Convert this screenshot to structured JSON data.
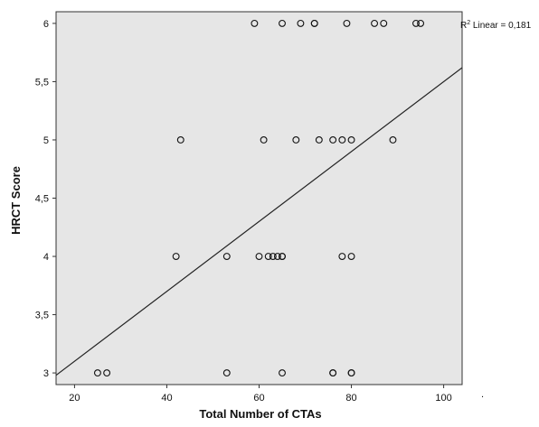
{
  "chart_data": {
    "type": "scatter",
    "xlabel": "Total Number of CTAs",
    "ylabel": "HRCT Score",
    "xlim": [
      16,
      104
    ],
    "ylim": [
      2.9,
      6.1
    ],
    "xticks": [
      20,
      40,
      60,
      80,
      100
    ],
    "yticks": [
      3,
      3.5,
      4,
      4.5,
      5,
      5.5,
      6
    ],
    "xtick_labels": [
      "20",
      "40",
      "60",
      "80",
      "100"
    ],
    "ytick_labels": [
      "3",
      "3,5",
      "4",
      "4,5",
      "5",
      "5,5",
      "6"
    ],
    "grid": false,
    "background": "#e6e6e6",
    "marker": "open-circle",
    "points": [
      {
        "x": 59,
        "y": 6
      },
      {
        "x": 65,
        "y": 6
      },
      {
        "x": 69,
        "y": 6
      },
      {
        "x": 72,
        "y": 6
      },
      {
        "x": 72,
        "y": 6
      },
      {
        "x": 79,
        "y": 6
      },
      {
        "x": 85,
        "y": 6
      },
      {
        "x": 87,
        "y": 6
      },
      {
        "x": 94,
        "y": 6
      },
      {
        "x": 95,
        "y": 6
      },
      {
        "x": 43,
        "y": 5
      },
      {
        "x": 61,
        "y": 5
      },
      {
        "x": 68,
        "y": 5
      },
      {
        "x": 73,
        "y": 5
      },
      {
        "x": 76,
        "y": 5
      },
      {
        "x": 78,
        "y": 5
      },
      {
        "x": 80,
        "y": 5
      },
      {
        "x": 89,
        "y": 5
      },
      {
        "x": 42,
        "y": 4
      },
      {
        "x": 53,
        "y": 4
      },
      {
        "x": 60,
        "y": 4
      },
      {
        "x": 62,
        "y": 4
      },
      {
        "x": 63,
        "y": 4
      },
      {
        "x": 64,
        "y": 4
      },
      {
        "x": 65,
        "y": 4
      },
      {
        "x": 65,
        "y": 4
      },
      {
        "x": 78,
        "y": 4
      },
      {
        "x": 80,
        "y": 4
      },
      {
        "x": 25,
        "y": 3
      },
      {
        "x": 27,
        "y": 3
      },
      {
        "x": 53,
        "y": 3
      },
      {
        "x": 65,
        "y": 3
      },
      {
        "x": 76,
        "y": 3
      },
      {
        "x": 76,
        "y": 3
      },
      {
        "x": 80,
        "y": 3
      },
      {
        "x": 80,
        "y": 3
      }
    ],
    "fit_line": {
      "type": "linear",
      "x": [
        16,
        104
      ],
      "y": [
        2.98,
        5.62
      ]
    },
    "annotation": {
      "prefix": "R",
      "superscript": "2",
      "text": " Linear = 0,181"
    },
    "footnote": "."
  }
}
